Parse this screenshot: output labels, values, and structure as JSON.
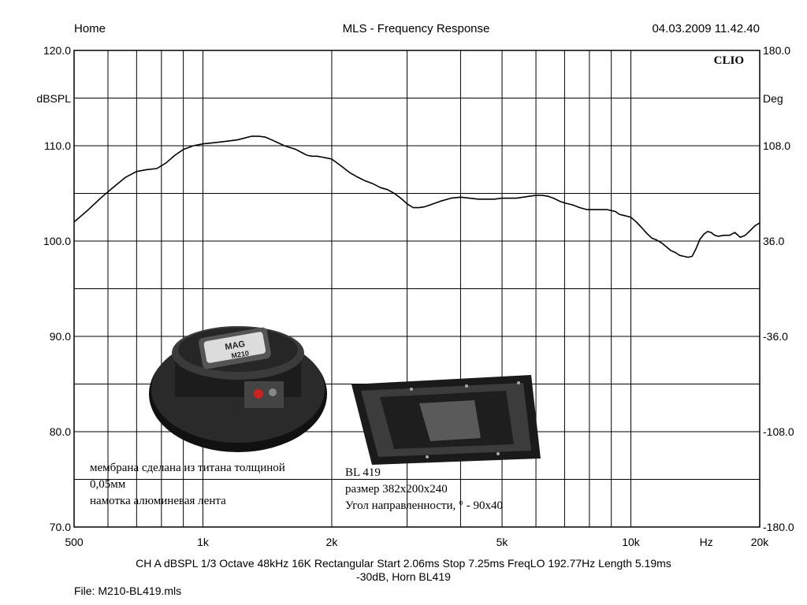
{
  "header": {
    "left": "Home",
    "center": "MLS - Frequency Response",
    "right": "04.03.2009 11.42.40",
    "brand": "CLIO"
  },
  "chart_data": {
    "type": "line",
    "title": "MLS - Frequency Response",
    "xscale": "log",
    "xlim": [
      500,
      20000
    ],
    "ylim": [
      70,
      120
    ],
    "y2lim": [
      -180,
      180
    ],
    "ylabel": "dBSPL",
    "y2label": "Deg",
    "xunit": "Hz",
    "grid": true,
    "y_ticks": [
      "120.0",
      "110.0",
      "100.0",
      "90.0",
      "80.0",
      "70.0"
    ],
    "y2_ticks": [
      "180.0",
      "108.0",
      "36.0",
      "-36.0",
      "-108.0",
      "-180.0"
    ],
    "x_tick_labels": [
      {
        "value": 500,
        "label": "500"
      },
      {
        "value": 1000,
        "label": "1k"
      },
      {
        "value": 2000,
        "label": "2k"
      },
      {
        "value": 5000,
        "label": "5k"
      },
      {
        "value": 10000,
        "label": "10k"
      },
      {
        "value": 20000,
        "label": "20k"
      }
    ],
    "series": [
      {
        "color": "#000000",
        "x": [
          500,
          540,
          580,
          620,
          660,
          700,
          740,
          780,
          820,
          860,
          900,
          950,
          1000,
          1050,
          1100,
          1150,
          1200,
          1250,
          1300,
          1350,
          1400,
          1450,
          1500,
          1550,
          1600,
          1650,
          1700,
          1750,
          1800,
          1850,
          1900,
          1950,
          2000,
          2100,
          2200,
          2300,
          2400,
          2500,
          2600,
          2700,
          2800,
          2900,
          3000,
          3100,
          3200,
          3300,
          3400,
          3600,
          3800,
          4000,
          4200,
          4400,
          4600,
          4800,
          5000,
          5200,
          5400,
          5600,
          5800,
          6000,
          6200,
          6400,
          6600,
          6800,
          7000,
          7300,
          7600,
          7900,
          8200,
          8500,
          8800,
          9000,
          9200,
          9400,
          9600,
          9800,
          10000,
          10300,
          10600,
          10900,
          11200,
          11500,
          11800,
          12100,
          12400,
          12700,
          13000,
          13300,
          13600,
          13900,
          14200,
          14500,
          14800,
          15100,
          15400,
          15700,
          16000,
          16500,
          17000,
          17500,
          18000,
          18500,
          19000,
          19500,
          20000
        ],
        "y": [
          102.0,
          103.3,
          104.6,
          105.7,
          106.7,
          107.3,
          107.5,
          107.6,
          108.2,
          109.0,
          109.6,
          110.0,
          110.2,
          110.3,
          110.4,
          110.5,
          110.6,
          110.8,
          111.0,
          111.0,
          110.9,
          110.6,
          110.3,
          110.0,
          109.8,
          109.6,
          109.3,
          109.0,
          108.9,
          108.9,
          108.8,
          108.7,
          108.6,
          107.9,
          107.2,
          106.7,
          106.3,
          106.0,
          105.6,
          105.4,
          105.0,
          104.5,
          103.9,
          103.5,
          103.5,
          103.6,
          103.8,
          104.2,
          104.5,
          104.6,
          104.5,
          104.4,
          104.4,
          104.4,
          104.5,
          104.5,
          104.5,
          104.6,
          104.7,
          104.8,
          104.8,
          104.7,
          104.5,
          104.2,
          104.0,
          103.8,
          103.5,
          103.3,
          103.3,
          103.3,
          103.3,
          103.2,
          103.1,
          102.8,
          102.7,
          102.6,
          102.5,
          102.0,
          101.4,
          100.8,
          100.3,
          100.1,
          99.8,
          99.4,
          99.0,
          98.8,
          98.5,
          98.4,
          98.3,
          98.4,
          99.2,
          100.2,
          100.7,
          101.0,
          100.9,
          100.6,
          100.5,
          100.6,
          100.6,
          100.9,
          100.4,
          100.6,
          101.1,
          101.6,
          101.9
        ]
      }
    ]
  },
  "footer": {
    "line1": "CH A   dBSPL   1/3 Octave   48kHz   16K   Rectangular   Start 2.06ms     Stop 7.25ms     FreqLO 192.77Hz     Length 5.19ms",
    "line2": "-30dB, Horn BL419",
    "file": "File: M210-BL419.mls"
  },
  "driver": {
    "brand_label": "MAG",
    "model_label": "M210",
    "notes": [
      "мембрана сделана из титана толщиной",
      "0,05мм",
      "намотка алюминевая лента"
    ]
  },
  "horn": {
    "notes": [
      "BL 419",
      "размер 382x200x240",
      "Угол направленности, ° - 90x40"
    ]
  }
}
